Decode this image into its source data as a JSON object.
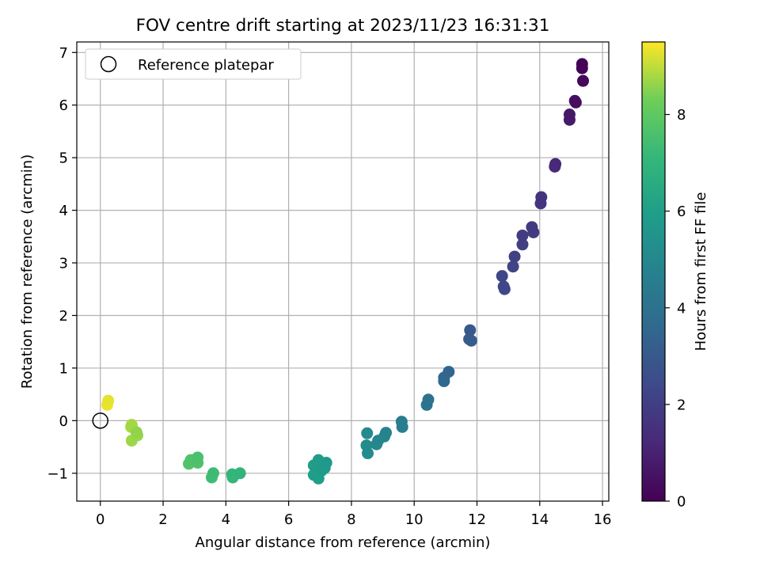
{
  "chart_data": {
    "type": "scatter",
    "title": "FOV centre drift starting at 2023/11/23 16:31:31",
    "xlabel": "Angular distance from reference (arcmin)",
    "ylabel": "Rotation from reference (arcmin)",
    "xlim": [
      -0.75,
      16.2
    ],
    "ylim": [
      -1.53,
      7.2
    ],
    "xticks": [
      0,
      2,
      4,
      6,
      8,
      10,
      12,
      14,
      16
    ],
    "yticks": [
      -1,
      0,
      1,
      2,
      3,
      4,
      5,
      6,
      7
    ],
    "grid": true,
    "legend": {
      "position": "top-left",
      "entries": [
        "Reference platepar"
      ]
    },
    "reference_point": {
      "x": 0,
      "y": 0,
      "label": "Reference platepar"
    },
    "colorbar": {
      "label": "Hours from first FF file",
      "range": [
        0,
        9.5
      ],
      "ticks": [
        0,
        2,
        4,
        6,
        8
      ],
      "colormap": "viridis"
    },
    "points": [
      {
        "x": 15.35,
        "y": 6.78,
        "h": 0.05
      },
      {
        "x": 15.35,
        "y": 6.7,
        "h": 0.1
      },
      {
        "x": 15.38,
        "y": 6.46,
        "h": 0.2
      },
      {
        "x": 15.12,
        "y": 6.08,
        "h": 0.4
      },
      {
        "x": 15.15,
        "y": 6.05,
        "h": 0.45
      },
      {
        "x": 14.95,
        "y": 5.82,
        "h": 0.7
      },
      {
        "x": 14.95,
        "y": 5.72,
        "h": 0.75
      },
      {
        "x": 14.5,
        "y": 4.88,
        "h": 1.2
      },
      {
        "x": 14.48,
        "y": 4.83,
        "h": 1.25
      },
      {
        "x": 14.05,
        "y": 4.25,
        "h": 1.6
      },
      {
        "x": 14.03,
        "y": 4.13,
        "h": 1.65
      },
      {
        "x": 13.75,
        "y": 3.68,
        "h": 1.85
      },
      {
        "x": 13.8,
        "y": 3.58,
        "h": 1.9
      },
      {
        "x": 13.45,
        "y": 3.52,
        "h": 1.95
      },
      {
        "x": 13.45,
        "y": 3.35,
        "h": 2.0
      },
      {
        "x": 13.2,
        "y": 3.12,
        "h": 2.1
      },
      {
        "x": 13.15,
        "y": 2.93,
        "h": 2.15
      },
      {
        "x": 12.8,
        "y": 2.75,
        "h": 2.25
      },
      {
        "x": 12.85,
        "y": 2.55,
        "h": 2.3
      },
      {
        "x": 12.88,
        "y": 2.5,
        "h": 2.35
      },
      {
        "x": 11.78,
        "y": 1.72,
        "h": 3.0
      },
      {
        "x": 11.75,
        "y": 1.55,
        "h": 3.1
      },
      {
        "x": 11.82,
        "y": 1.52,
        "h": 3.15
      },
      {
        "x": 11.1,
        "y": 0.93,
        "h": 3.5
      },
      {
        "x": 10.95,
        "y": 0.82,
        "h": 3.6
      },
      {
        "x": 10.95,
        "y": 0.75,
        "h": 3.65
      },
      {
        "x": 10.45,
        "y": 0.4,
        "h": 4.0
      },
      {
        "x": 10.4,
        "y": 0.3,
        "h": 4.05
      },
      {
        "x": 9.6,
        "y": -0.02,
        "h": 4.5
      },
      {
        "x": 9.62,
        "y": -0.12,
        "h": 4.55
      },
      {
        "x": 9.1,
        "y": -0.23,
        "h": 4.8
      },
      {
        "x": 9.05,
        "y": -0.3,
        "h": 4.85
      },
      {
        "x": 8.85,
        "y": -0.38,
        "h": 4.95
      },
      {
        "x": 8.8,
        "y": -0.45,
        "h": 5.0
      },
      {
        "x": 8.5,
        "y": -0.24,
        "h": 5.1
      },
      {
        "x": 8.48,
        "y": -0.47,
        "h": 5.15
      },
      {
        "x": 8.52,
        "y": -0.62,
        "h": 5.2
      },
      {
        "x": 7.2,
        "y": -0.8,
        "h": 5.7
      },
      {
        "x": 7.15,
        "y": -0.9,
        "h": 5.75
      },
      {
        "x": 7.05,
        "y": -0.95,
        "h": 5.8
      },
      {
        "x": 6.95,
        "y": -0.75,
        "h": 5.85
      },
      {
        "x": 6.8,
        "y": -0.85,
        "h": 5.9
      },
      {
        "x": 6.8,
        "y": -1.03,
        "h": 5.95
      },
      {
        "x": 6.95,
        "y": -1.1,
        "h": 6.0
      },
      {
        "x": 4.45,
        "y": -1.0,
        "h": 7.0
      },
      {
        "x": 4.2,
        "y": -1.02,
        "h": 7.05
      },
      {
        "x": 4.22,
        "y": -1.08,
        "h": 7.1
      },
      {
        "x": 3.6,
        "y": -1.0,
        "h": 7.3
      },
      {
        "x": 3.55,
        "y": -1.08,
        "h": 7.35
      },
      {
        "x": 3.1,
        "y": -0.7,
        "h": 7.6
      },
      {
        "x": 3.1,
        "y": -0.8,
        "h": 7.65
      },
      {
        "x": 2.88,
        "y": -0.75,
        "h": 7.7
      },
      {
        "x": 2.82,
        "y": -0.82,
        "h": 7.75
      },
      {
        "x": 1.15,
        "y": -0.22,
        "h": 8.6
      },
      {
        "x": 1.18,
        "y": -0.28,
        "h": 8.65
      },
      {
        "x": 1.0,
        "y": -0.08,
        "h": 8.75
      },
      {
        "x": 0.98,
        "y": -0.12,
        "h": 8.8
      },
      {
        "x": 1.0,
        "y": -0.38,
        "h": 8.7
      },
      {
        "x": 0.25,
        "y": 0.38,
        "h": 9.3
      },
      {
        "x": 0.22,
        "y": 0.3,
        "h": 9.35
      }
    ]
  }
}
